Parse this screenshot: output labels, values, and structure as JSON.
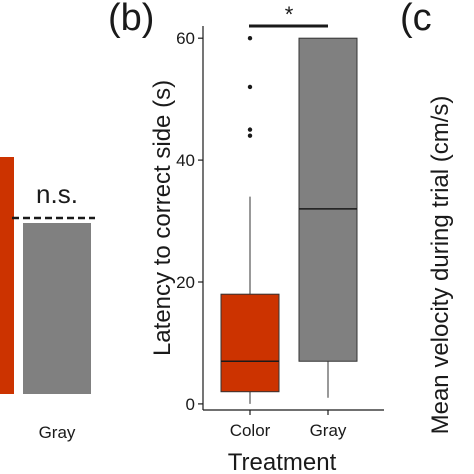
{
  "colors": {
    "color_group": "#cc3300",
    "gray_group": "#808080",
    "axis": "#1a1a1a"
  },
  "chart_data": [
    {
      "panel_label": "",
      "type": "bar",
      "categories": [
        "",
        "Gray"
      ],
      "values": [
        null,
        null
      ],
      "xlabel": "",
      "ylabel": "",
      "significance_label": "n.s.",
      "notes": "Left panel cropped; only the Gray tick label and the n.s. annotation are readable."
    },
    {
      "panel_label": "(b)",
      "type": "box",
      "categories": [
        "Color",
        "Gray"
      ],
      "xlabel": "Treatment",
      "ylabel": "Latency to correct side (s)",
      "ylim": [
        -1,
        62
      ],
      "yticks": [
        0,
        20,
        40,
        60
      ],
      "grid": false,
      "significance_label": "*",
      "series": [
        {
          "category": "Color",
          "whisker_low": 0,
          "q1": 2,
          "median": 7,
          "q3": 18,
          "whisker_high": 34,
          "outliers": [
            44,
            45,
            52,
            60
          ]
        },
        {
          "category": "Gray",
          "whisker_low": 1,
          "q1": 7,
          "median": 32,
          "q3": 60,
          "whisker_high": 60,
          "outliers": []
        }
      ]
    },
    {
      "panel_label": "(c",
      "type": "bar",
      "ylabel": "Mean velocity during trial (cm/s)",
      "notes": "Right panel cropped; only the label and y-axis title are visible."
    }
  ]
}
